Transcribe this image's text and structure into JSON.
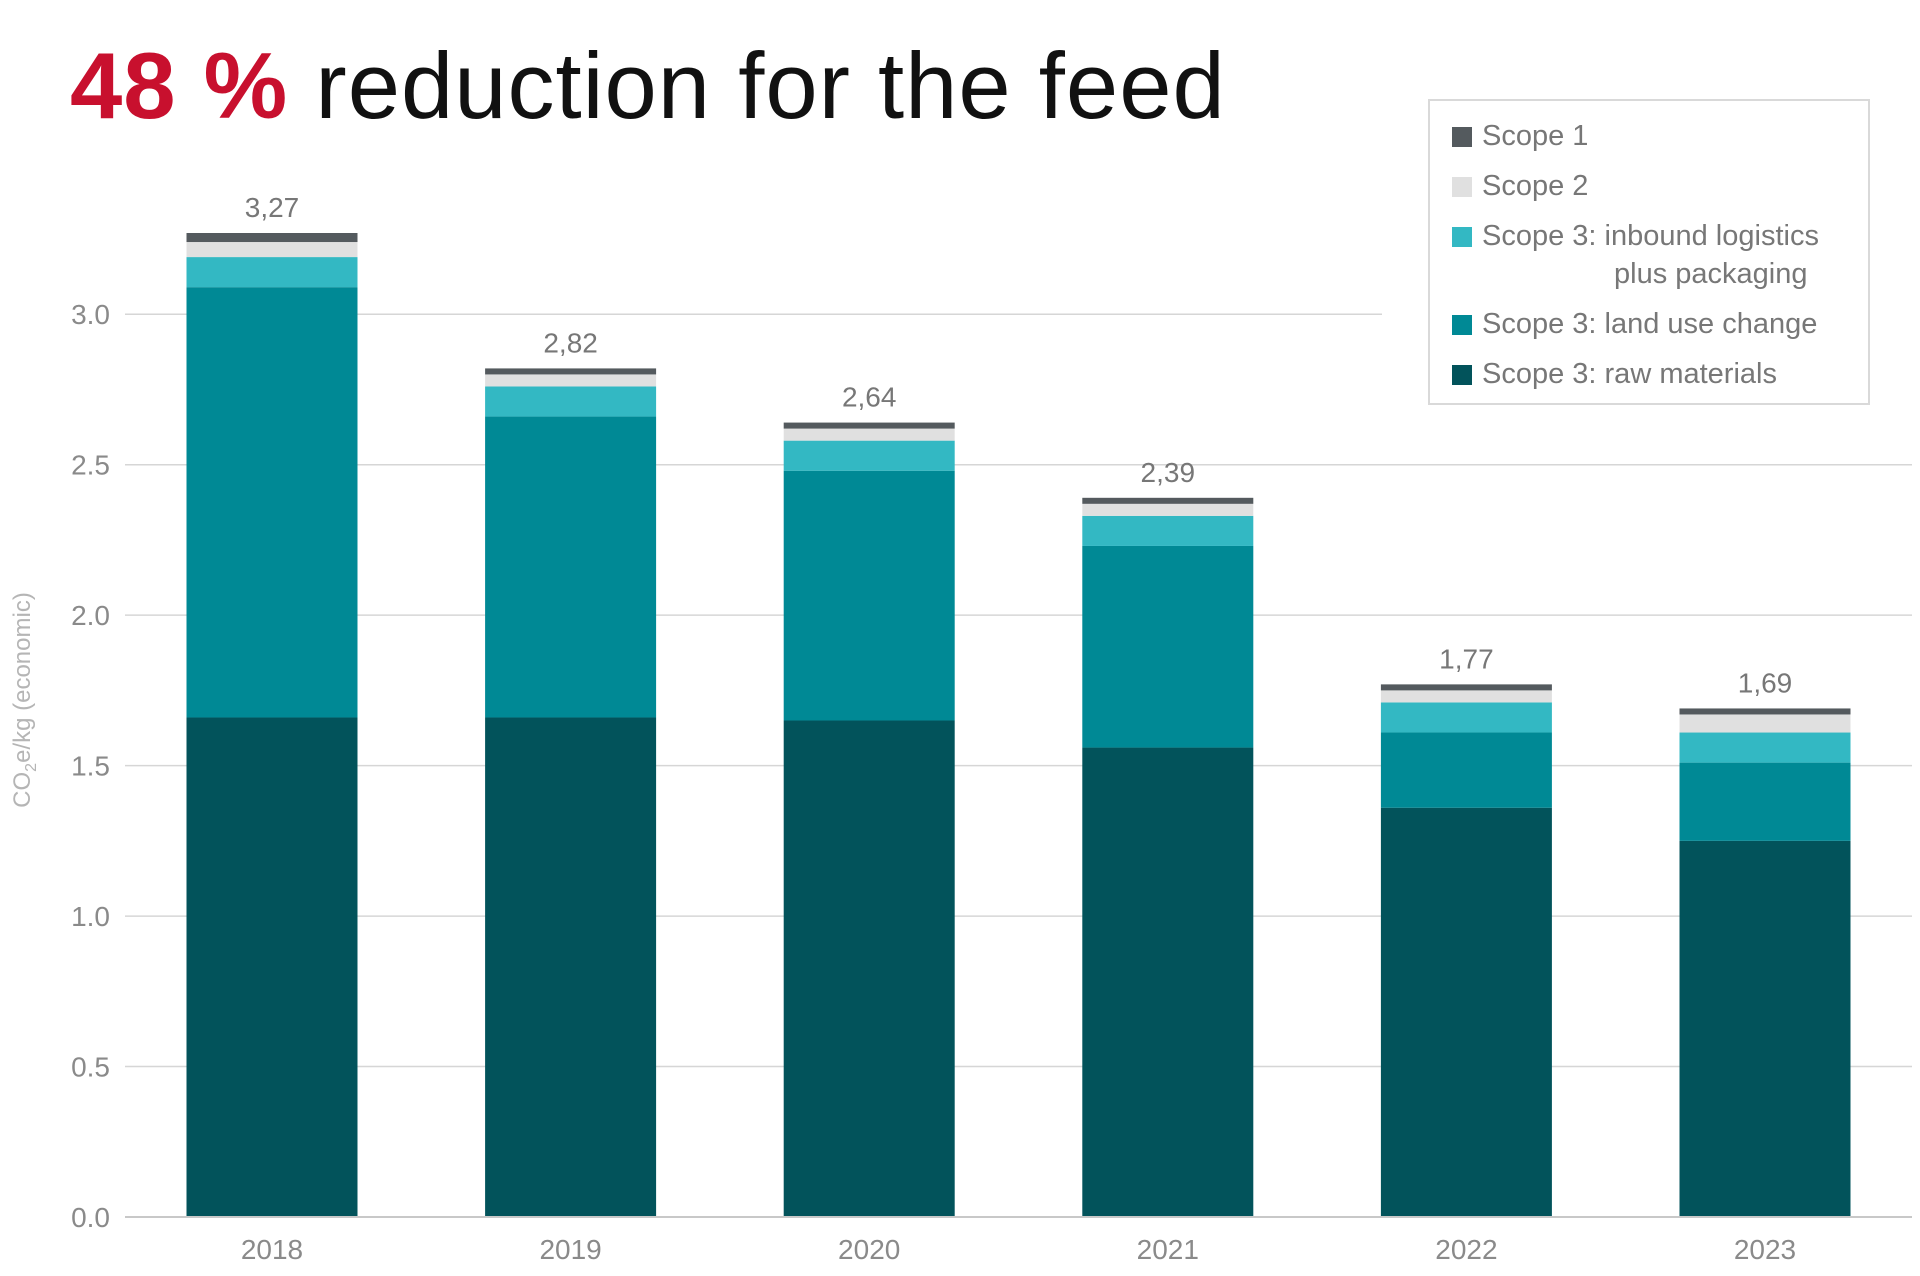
{
  "title": {
    "highlight": "48 %",
    "text": "reduction for the feed"
  },
  "chart_data": {
    "type": "bar",
    "stacked": true,
    "title": "48 % reduction for the feed",
    "ylabel": "CO2e/kg (economic)",
    "ylim": [
      0,
      3.27
    ],
    "yticks": [
      "0.0",
      "0.5",
      "1.0",
      "1.5",
      "2.0",
      "2.5",
      "3.0"
    ],
    "categories": [
      "2018",
      "2019",
      "2020",
      "2021",
      "2022",
      "2023"
    ],
    "totals": [
      "3,27",
      "2,82",
      "2,64",
      "2,39",
      "1,77",
      "1,69"
    ],
    "series": [
      {
        "name": "Scope 3: raw materials",
        "color": "#02535b",
        "values": [
          1.66,
          1.66,
          1.65,
          1.56,
          1.36,
          1.25
        ]
      },
      {
        "name": "Scope 3: land use change",
        "color": "#008995",
        "values": [
          1.43,
          1.0,
          0.83,
          0.67,
          0.25,
          0.26
        ]
      },
      {
        "name": "Scope 3: inbound logistics plus packaging",
        "color": "#33b8c3",
        "values": [
          0.1,
          0.1,
          0.1,
          0.1,
          0.1,
          0.1
        ]
      },
      {
        "name": "Scope 2",
        "color": "#e0e0e0",
        "values": [
          0.05,
          0.04,
          0.04,
          0.04,
          0.04,
          0.06
        ]
      },
      {
        "name": "Scope 1",
        "color": "#545a5e",
        "values": [
          0.03,
          0.02,
          0.02,
          0.02,
          0.02,
          0.02
        ]
      }
    ],
    "legend_position": "top-right",
    "grid": true
  },
  "legend": {
    "items": [
      {
        "label": "Scope 1",
        "color": "#545a5e"
      },
      {
        "label": "Scope 2",
        "color": "#e0e0e0"
      },
      {
        "label": "Scope 3: inbound logistics plus packaging",
        "color": "#33b8c3"
      },
      {
        "label": "Scope 3: land use change",
        "color": "#008995"
      },
      {
        "label": "Scope 3: raw materials",
        "color": "#02535b"
      }
    ]
  }
}
